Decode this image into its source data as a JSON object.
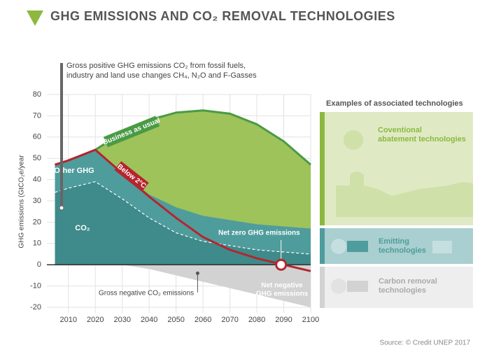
{
  "header": {
    "title": "GHG EMISSIONS AND CO₂ REMOVAL TECHNOLOGIES"
  },
  "chart_data": {
    "type": "area",
    "y_label": "GHG emissions (GtCO₂e/year",
    "x": [
      2005,
      2010,
      2020,
      2030,
      2040,
      2050,
      2060,
      2070,
      2080,
      2090,
      2100
    ],
    "xlim": [
      2002,
      2100
    ],
    "xticks": [
      2010,
      2020,
      2030,
      2040,
      2050,
      2060,
      2070,
      2080,
      2090,
      2100
    ],
    "ylim": [
      -20,
      80
    ],
    "yticks": [
      -20,
      -10,
      0,
      10,
      20,
      30,
      40,
      50,
      60,
      70,
      80
    ],
    "grid": true,
    "series": [
      {
        "name": "Business as usual",
        "color": "#9dc35a",
        "values": [
          47,
          49,
          54,
          62,
          68,
          71.5,
          72.5,
          71,
          66,
          58,
          47
        ]
      },
      {
        "name": "Other GHG",
        "color": "#4f9c9c",
        "values": [
          47,
          49,
          54,
          43,
          33,
          27,
          23,
          21,
          19,
          18,
          17
        ]
      },
      {
        "name": "CO₂",
        "color": "#3f8a8a",
        "values": [
          34,
          36,
          39,
          31,
          22,
          15,
          11,
          9,
          7,
          6,
          5
        ]
      },
      {
        "name": "Gross negative CO₂ emissions",
        "color": "#d2d2d2",
        "values": [
          0,
          0,
          0,
          0,
          -2,
          -5,
          -8,
          -11,
          -14,
          -17,
          -20
        ]
      },
      {
        "name": "Below 2°C",
        "color": "#b5252e",
        "values": [
          47,
          49,
          54,
          43,
          32,
          22,
          13,
          7,
          3,
          0,
          -3
        ]
      }
    ],
    "annotations": {
      "gross_positive": [
        "Gross positive GHG emissions CO₂ from fossil fuels,",
        "industry and land use changes CH₄, N₂O and F-Gasses"
      ],
      "net_zero": {
        "label": "Net zero GHG emissions",
        "x": 2089,
        "y": 0
      },
      "net_negative": [
        "Net negative",
        "GHG emissions"
      ]
    }
  },
  "technologies": {
    "title": "Examples of associated technologies",
    "items": [
      [
        "Coventional",
        "abatement technologies"
      ],
      [
        "Emitting",
        "technologies"
      ],
      [
        "Carbon removal",
        "technologies"
      ]
    ]
  },
  "source": "Source: © Credit UNEP 2017"
}
